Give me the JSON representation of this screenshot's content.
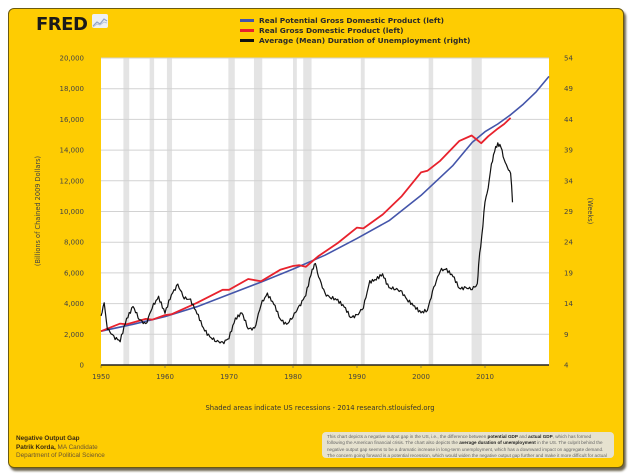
{
  "header": {
    "logo_text": "FRED",
    "logo_icon": "chart-line-icon"
  },
  "legend": [
    {
      "label": "Real Potential Gross Domestic Product (left)",
      "color": "#4455aa"
    },
    {
      "label": "Real Gross Domestic Product (left)",
      "color": "#e8222d"
    },
    {
      "label": "Average (Mean) Duration of Unemployment (right)",
      "color": "#111111"
    }
  ],
  "source_note": "Shaded areas indicate US recessions - 2014 research.stlouisfed.org",
  "footer": {
    "title": "Negative Output Gap",
    "author": "Patrik Korda,",
    "author_role": " MA Candidate",
    "department": "Department of Political Science"
  },
  "description": {
    "part1": "This chart depicts a negative output gap in the US, i.e., the difference between ",
    "bold1": "potential GDP",
    "part2": " and ",
    "bold2": "actual GDP",
    "part3": ", which has formed following the American financial crisis. The chart also depicts the ",
    "bold3": "average duration of unemployment",
    "part4": " in the US. The culprit behind the negative output gap seems to be a dramatic increase in long-term unemployment, which has a downward impact on aggregate demand. The concern going forward is a potential recession, which would widen the negative output gap further and make it more difficult for actual GDP to get back in line with potential GDP"
  },
  "chart_data": {
    "type": "line",
    "title": "",
    "xlabel": "",
    "ylabel": "(Billions of Chained 2009 Dollars)",
    "ylabel_right": "(Weeks)",
    "xlim": [
      1950,
      2020
    ],
    "ylim": [
      0,
      20000
    ],
    "ylim_right": [
      4,
      54
    ],
    "x_ticks": [
      1950,
      1960,
      1970,
      1980,
      1990,
      2000,
      2010
    ],
    "y_ticks": [
      "0",
      "2,000",
      "4,000",
      "6,000",
      "8,000",
      "10,000",
      "12,000",
      "14,000",
      "16,000",
      "18,000",
      "20,000"
    ],
    "y_ticks_right": [
      "4",
      "9",
      "14",
      "19",
      "24",
      "29",
      "34",
      "39",
      "44",
      "49",
      "54"
    ],
    "grid": true,
    "legend_position": "top",
    "recessions": [
      [
        1953.5,
        1954.4
      ],
      [
        1957.6,
        1958.3
      ],
      [
        1960.3,
        1961.1
      ],
      [
        1969.9,
        1970.9
      ],
      [
        1973.9,
        1975.2
      ],
      [
        1980.0,
        1980.6
      ],
      [
        1981.6,
        1982.9
      ],
      [
        1990.6,
        1991.2
      ],
      [
        2001.2,
        2001.9
      ],
      [
        2007.9,
        2009.5
      ]
    ],
    "series": [
      {
        "name": "Real Potential Gross Domestic Product (left)",
        "axis": "left",
        "x": [
          1950,
          1955,
          1960,
          1965,
          1970,
          1975,
          1980,
          1985,
          1990,
          1995,
          2000,
          2005,
          2008,
          2010,
          2012,
          2014,
          2016,
          2018,
          2020
        ],
        "y": [
          2200,
          2650,
          3150,
          3800,
          4600,
          5400,
          6250,
          7150,
          8250,
          9400,
          11050,
          13000,
          14500,
          15200,
          15700,
          16300,
          17000,
          17800,
          18800
        ]
      },
      {
        "name": "Real Gross Domestic Product (left)",
        "axis": "left",
        "x": [
          1950,
          1953,
          1954,
          1957,
          1958,
          1960,
          1961,
          1965,
          1969,
          1970,
          1973,
          1975,
          1978,
          1980,
          1981,
          1982,
          1984,
          1987,
          1990,
          1991,
          1994,
          1997,
          2000,
          2001,
          2003,
          2006,
          2007.9,
          2009.4,
          2010.5,
          2012,
          2013,
          2014
        ],
        "y": [
          2200,
          2700,
          2650,
          3000,
          2950,
          3250,
          3300,
          4050,
          4900,
          4900,
          5600,
          5450,
          6200,
          6450,
          6500,
          6400,
          7100,
          7950,
          8950,
          8900,
          9800,
          11000,
          12550,
          12650,
          13300,
          14600,
          14950,
          14450,
          14900,
          15400,
          15700,
          16100
        ]
      },
      {
        "name": "Average (Mean) Duration of Unemployment (right)",
        "axis": "right",
        "x": [
          1950,
          1950.5,
          1951,
          1952,
          1953,
          1954,
          1955,
          1956,
          1957,
          1958,
          1959,
          1960,
          1961,
          1962,
          1963,
          1964,
          1965,
          1966,
          1967,
          1968,
          1969,
          1970,
          1971,
          1972,
          1973,
          1974,
          1975,
          1976,
          1977,
          1978,
          1979,
          1980,
          1981,
          1982,
          1983,
          1983.5,
          1984,
          1985,
          1986,
          1987,
          1988,
          1989,
          1990,
          1991,
          1992,
          1993,
          1994,
          1995,
          1996,
          1997,
          1998,
          1999,
          2000,
          2001,
          2002,
          2003,
          2004,
          2005,
          2006,
          2007,
          2008,
          2008.8,
          2009,
          2009.5,
          2010,
          2010.5,
          2011,
          2011.5,
          2012,
          2012.5,
          2013,
          2013.5,
          2014,
          2014.3
        ],
        "y": [
          12,
          14,
          10,
          8.5,
          8,
          11.5,
          13.5,
          11.5,
          10.5,
          13.5,
          15,
          12.5,
          15.5,
          17,
          15,
          14.5,
          12.5,
          10,
          8.5,
          8,
          7.5,
          8.5,
          11.5,
          12.5,
          10,
          9.8,
          14,
          15.5,
          14,
          11.5,
          10.5,
          12,
          13.5,
          15.5,
          19.5,
          20.5,
          18.5,
          15.5,
          15,
          14.5,
          13.5,
          11.8,
          12,
          13.5,
          17.5,
          18,
          18.8,
          16.5,
          16.5,
          15.8,
          14.5,
          13.5,
          12.5,
          13,
          16.5,
          19.5,
          19.5,
          18.5,
          16.5,
          16.5,
          16.5,
          17,
          20.5,
          25,
          30.5,
          33,
          36.5,
          39,
          40,
          39.5,
          37.5,
          36,
          35.5,
          30.5
        ]
      }
    ]
  }
}
